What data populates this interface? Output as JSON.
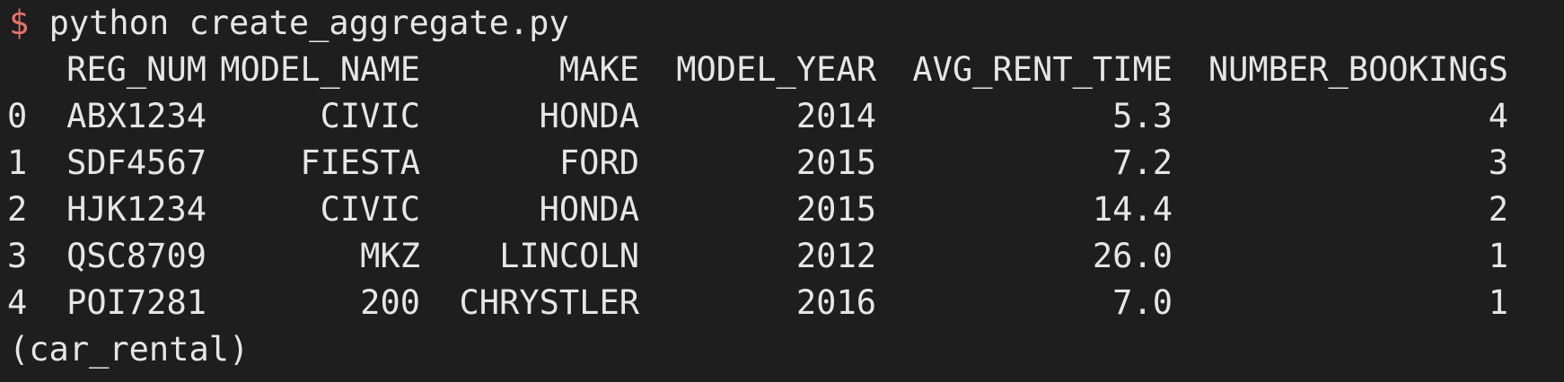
{
  "prompt": {
    "symbol": "$",
    "command": "python create_aggregate.py"
  },
  "table": {
    "columns": [
      "REG_NUM",
      "MODEL_NAME",
      "MAKE",
      "MODEL_YEAR",
      "AVG_RENT_TIME",
      "NUMBER_BOOKINGS"
    ],
    "rows": [
      {
        "index": "0",
        "reg_num": "ABX1234",
        "model_name": "CIVIC",
        "make": "HONDA",
        "model_year": "2014",
        "avg_rent_time": "5.3",
        "number_bookings": "4"
      },
      {
        "index": "1",
        "reg_num": "SDF4567",
        "model_name": "FIESTA",
        "make": "FORD",
        "model_year": "2015",
        "avg_rent_time": "7.2",
        "number_bookings": "3"
      },
      {
        "index": "2",
        "reg_num": "HJK1234",
        "model_name": "CIVIC",
        "make": "HONDA",
        "model_year": "2015",
        "avg_rent_time": "14.4",
        "number_bookings": "2"
      },
      {
        "index": "3",
        "reg_num": "QSC8709",
        "model_name": "MKZ",
        "make": "LINCOLN",
        "model_year": "2012",
        "avg_rent_time": "26.0",
        "number_bookings": "1"
      },
      {
        "index": "4",
        "reg_num": "POI7281",
        "model_name": "200",
        "make": "CHRYSTLER",
        "model_year": "2016",
        "avg_rent_time": "7.0",
        "number_bookings": "1"
      }
    ]
  },
  "footer": {
    "env": "(car_rental)"
  },
  "colors": {
    "background": "#1e1e1e",
    "text": "#e6e6e6",
    "prompt": "#e8736b"
  }
}
